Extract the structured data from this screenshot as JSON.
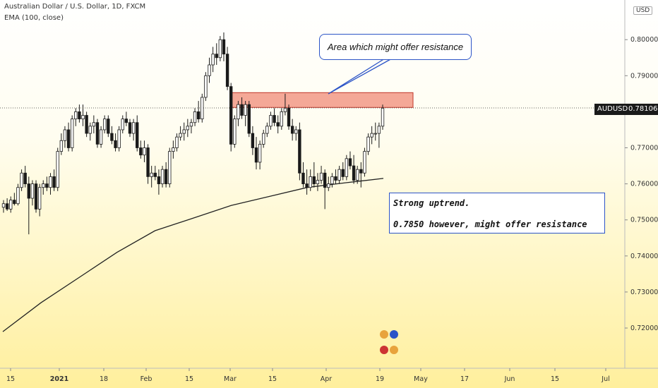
{
  "symbol_title": "Australian Dollar / U.S. Dollar, 1D, FXCM",
  "indicator_label": "EMA (100, close)",
  "currency_badge": "USD",
  "price_tag": {
    "symbol": "AUDUSD",
    "price": "0.78106"
  },
  "callouts": {
    "resistance_note": "Area which might offer resistance",
    "analysis_line1": "Strong uptrend.",
    "analysis_line2": "0.7850 however, might offer resistance"
  },
  "colors": {
    "up": "#ffffff",
    "down": "#1a1a1a",
    "zone": "#f4a897",
    "callout_border": "#2c54c7"
  },
  "chart_data": {
    "type": "candlestick",
    "title": "Australian Dollar / U.S. Dollar, 1D, FXCM",
    "ylim": [
      0.711,
      0.811
    ],
    "y_ticks": [
      "0.72000",
      "0.73000",
      "0.74000",
      "0.75000",
      "0.76000",
      "0.77000",
      "0.78000",
      "0.79000",
      "0.80000"
    ],
    "x_ticks": [
      "15",
      "2021",
      "18",
      "Feb",
      "15",
      "Mar",
      "15",
      "Apr",
      "19",
      "May",
      "17",
      "Jun",
      "15",
      "Jul"
    ],
    "resistance_zone": [
      0.7812,
      0.7853
    ],
    "last_price": 0.78106,
    "ohlc": [
      [
        0.7535,
        0.7555,
        0.752,
        0.7545
      ],
      [
        0.7545,
        0.756,
        0.7525,
        0.753
      ],
      [
        0.753,
        0.7565,
        0.752,
        0.7555
      ],
      [
        0.7555,
        0.7575,
        0.754,
        0.7545
      ],
      [
        0.7545,
        0.76,
        0.754,
        0.759
      ],
      [
        0.759,
        0.764,
        0.758,
        0.763
      ],
      [
        0.763,
        0.765,
        0.759,
        0.76
      ],
      [
        0.76,
        0.762,
        0.746,
        0.756
      ],
      [
        0.756,
        0.761,
        0.754,
        0.76
      ],
      [
        0.76,
        0.761,
        0.752,
        0.753
      ],
      [
        0.753,
        0.76,
        0.751,
        0.759
      ],
      [
        0.759,
        0.761,
        0.757,
        0.76
      ],
      [
        0.76,
        0.762,
        0.758,
        0.759
      ],
      [
        0.759,
        0.763,
        0.757,
        0.762
      ],
      [
        0.762,
        0.764,
        0.758,
        0.759
      ],
      [
        0.759,
        0.77,
        0.758,
        0.769
      ],
      [
        0.769,
        0.774,
        0.768,
        0.772
      ],
      [
        0.772,
        0.776,
        0.77,
        0.775
      ],
      [
        0.775,
        0.777,
        0.769,
        0.77
      ],
      [
        0.77,
        0.779,
        0.769,
        0.778
      ],
      [
        0.778,
        0.781,
        0.776,
        0.78
      ],
      [
        0.78,
        0.782,
        0.777,
        0.778
      ],
      [
        0.778,
        0.782,
        0.776,
        0.779
      ],
      [
        0.779,
        0.78,
        0.773,
        0.774
      ],
      [
        0.774,
        0.777,
        0.772,
        0.776
      ],
      [
        0.776,
        0.779,
        0.774,
        0.777
      ],
      [
        0.777,
        0.778,
        0.77,
        0.771
      ],
      [
        0.771,
        0.776,
        0.77,
        0.775
      ],
      [
        0.775,
        0.779,
        0.774,
        0.778
      ],
      [
        0.778,
        0.779,
        0.773,
        0.774
      ],
      [
        0.774,
        0.776,
        0.771,
        0.772
      ],
      [
        0.772,
        0.774,
        0.769,
        0.77
      ],
      [
        0.77,
        0.776,
        0.769,
        0.775
      ],
      [
        0.775,
        0.779,
        0.774,
        0.778
      ],
      [
        0.778,
        0.78,
        0.776,
        0.777
      ],
      [
        0.777,
        0.778,
        0.773,
        0.774
      ],
      [
        0.774,
        0.778,
        0.772,
        0.777
      ],
      [
        0.777,
        0.779,
        0.769,
        0.77
      ],
      [
        0.77,
        0.772,
        0.767,
        0.768
      ],
      [
        0.768,
        0.772,
        0.766,
        0.77
      ],
      [
        0.77,
        0.771,
        0.76,
        0.762
      ],
      [
        0.762,
        0.765,
        0.759,
        0.763
      ],
      [
        0.763,
        0.765,
        0.761,
        0.762
      ],
      [
        0.762,
        0.764,
        0.757,
        0.76
      ],
      [
        0.76,
        0.765,
        0.759,
        0.764
      ],
      [
        0.764,
        0.766,
        0.759,
        0.76
      ],
      [
        0.76,
        0.77,
        0.759,
        0.769
      ],
      [
        0.769,
        0.772,
        0.767,
        0.77
      ],
      [
        0.77,
        0.774,
        0.769,
        0.773
      ],
      [
        0.773,
        0.776,
        0.772,
        0.774
      ],
      [
        0.774,
        0.777,
        0.772,
        0.775
      ],
      [
        0.775,
        0.778,
        0.773,
        0.776
      ],
      [
        0.776,
        0.778,
        0.774,
        0.777
      ],
      [
        0.777,
        0.781,
        0.776,
        0.78
      ],
      [
        0.78,
        0.783,
        0.777,
        0.778
      ],
      [
        0.778,
        0.785,
        0.777,
        0.784
      ],
      [
        0.784,
        0.791,
        0.783,
        0.79
      ],
      [
        0.79,
        0.795,
        0.788,
        0.793
      ],
      [
        0.793,
        0.798,
        0.791,
        0.796
      ],
      [
        0.796,
        0.799,
        0.793,
        0.795
      ],
      [
        0.795,
        0.801,
        0.794,
        0.8
      ],
      [
        0.8,
        0.802,
        0.794,
        0.796
      ],
      [
        0.796,
        0.798,
        0.786,
        0.787
      ],
      [
        0.787,
        0.788,
        0.769,
        0.771
      ],
      [
        0.771,
        0.779,
        0.77,
        0.778
      ],
      [
        0.778,
        0.783,
        0.776,
        0.782
      ],
      [
        0.782,
        0.784,
        0.778,
        0.779
      ],
      [
        0.779,
        0.783,
        0.776,
        0.782
      ],
      [
        0.782,
        0.783,
        0.773,
        0.774
      ],
      [
        0.774,
        0.776,
        0.768,
        0.77
      ],
      [
        0.77,
        0.773,
        0.764,
        0.766
      ],
      [
        0.766,
        0.772,
        0.764,
        0.771
      ],
      [
        0.771,
        0.775,
        0.77,
        0.774
      ],
      [
        0.774,
        0.777,
        0.773,
        0.776
      ],
      [
        0.776,
        0.78,
        0.775,
        0.779
      ],
      [
        0.779,
        0.781,
        0.776,
        0.777
      ],
      [
        0.777,
        0.779,
        0.774,
        0.776
      ],
      [
        0.776,
        0.781,
        0.775,
        0.78
      ],
      [
        0.78,
        0.785,
        0.779,
        0.781
      ],
      [
        0.781,
        0.782,
        0.775,
        0.776
      ],
      [
        0.776,
        0.778,
        0.772,
        0.774
      ],
      [
        0.774,
        0.776,
        0.772,
        0.775
      ],
      [
        0.775,
        0.777,
        0.761,
        0.763
      ],
      [
        0.763,
        0.766,
        0.759,
        0.76
      ],
      [
        0.76,
        0.764,
        0.757,
        0.759
      ],
      [
        0.759,
        0.764,
        0.758,
        0.762
      ],
      [
        0.762,
        0.766,
        0.759,
        0.76
      ],
      [
        0.76,
        0.763,
        0.758,
        0.761
      ],
      [
        0.761,
        0.765,
        0.76,
        0.763
      ],
      [
        0.763,
        0.764,
        0.753,
        0.759
      ],
      [
        0.759,
        0.762,
        0.758,
        0.76
      ],
      [
        0.76,
        0.763,
        0.759,
        0.762
      ],
      [
        0.762,
        0.764,
        0.76,
        0.761
      ],
      [
        0.761,
        0.765,
        0.76,
        0.764
      ],
      [
        0.764,
        0.766,
        0.761,
        0.762
      ],
      [
        0.762,
        0.768,
        0.761,
        0.767
      ],
      [
        0.767,
        0.769,
        0.764,
        0.765
      ],
      [
        0.765,
        0.768,
        0.76,
        0.761
      ],
      [
        0.761,
        0.765,
        0.76,
        0.764
      ],
      [
        0.764,
        0.766,
        0.759,
        0.763
      ],
      [
        0.763,
        0.77,
        0.762,
        0.769
      ],
      [
        0.769,
        0.774,
        0.768,
        0.773
      ],
      [
        0.773,
        0.776,
        0.771,
        0.774
      ],
      [
        0.774,
        0.777,
        0.772,
        0.774
      ],
      [
        0.774,
        0.777,
        0.77,
        0.776
      ],
      [
        0.776,
        0.782,
        0.775,
        0.781
      ]
    ],
    "ema100": [
      0.719,
      0.727,
      0.734,
      0.741,
      0.747,
      0.7505,
      0.754,
      0.7565,
      0.759,
      0.7603,
      0.7615
    ],
    "grid": false,
    "legend": "top-left"
  }
}
